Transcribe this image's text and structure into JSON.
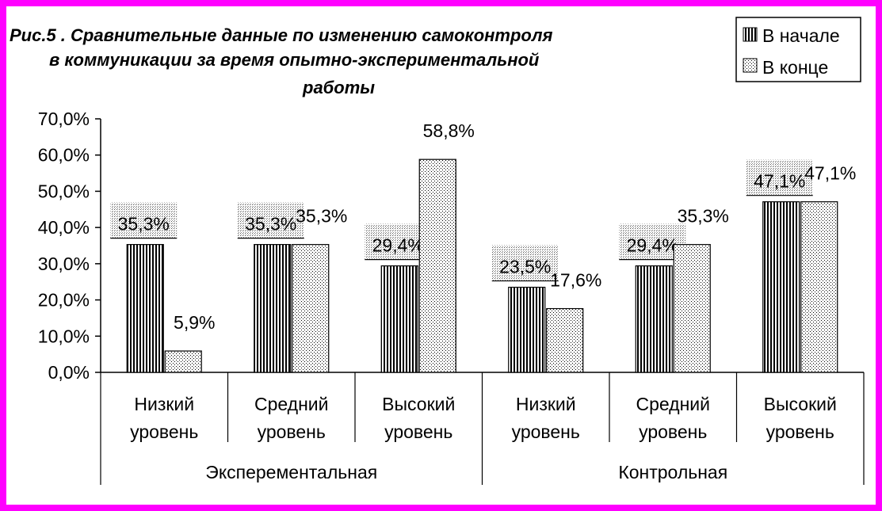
{
  "chart_data": {
    "type": "bar",
    "title_lines": [
      "Рис.5  . Сравнительные данные по изменению самоконтроля",
      "в коммуникации за время опытно-экспериментальной",
      "работы"
    ],
    "ylim": [
      0,
      70
    ],
    "yticks": [
      "0,0%",
      "10,0%",
      "20,0%",
      "30,0%",
      "40,0%",
      "50,0%",
      "60,0%",
      "70,0%"
    ],
    "categories": [
      [
        "Низкий",
        "уровень"
      ],
      [
        "Средний",
        "уровень"
      ],
      [
        "Высокий",
        "уровень"
      ],
      [
        "Низкий",
        "уровень"
      ],
      [
        "Средний",
        "уровень"
      ],
      [
        "Высокий",
        "уровень"
      ]
    ],
    "groups": [
      {
        "label": "Эксперементальная",
        "span": 3
      },
      {
        "label": "Контрольная",
        "span": 3
      }
    ],
    "series": [
      {
        "name": "В начале",
        "pattern": "vertical-stripes",
        "values": [
          35.3,
          35.3,
          29.4,
          23.5,
          29.4,
          47.1
        ],
        "labels": [
          "35,3%",
          "35,3%",
          "29,4%",
          "23,5%",
          "29,4%",
          "47,1%"
        ]
      },
      {
        "name": "В конце",
        "pattern": "dots",
        "values": [
          5.9,
          35.3,
          58.8,
          17.6,
          35.3,
          47.1
        ],
        "labels": [
          "5,9%",
          "35,3%",
          "58,8%",
          "17,6%",
          "35,3%",
          "47,1%"
        ]
      }
    ],
    "legend_position": "top-right",
    "grid": false
  },
  "colors": {
    "frame": "#ff00ff",
    "bar_stroke": "#000000",
    "label_background": "#e6e6e6"
  }
}
